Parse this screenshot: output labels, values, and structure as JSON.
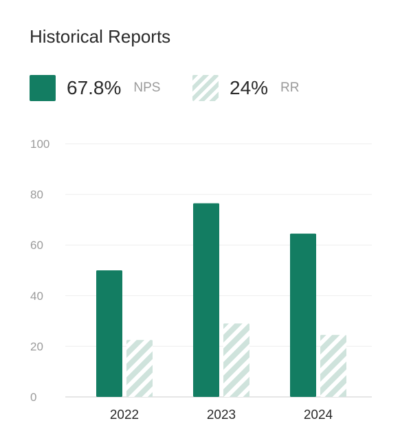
{
  "title": "Historical Reports",
  "legend": {
    "nps": {
      "value": "67.8%",
      "label": "NPS"
    },
    "rr": {
      "value": "24%",
      "label": "RR"
    }
  },
  "colors": {
    "nps": "#137d62",
    "rr_stripe": "#cfe3dc",
    "grid": "#eeeeee",
    "baseline": "#dddddd"
  },
  "chart_data": {
    "type": "bar",
    "categories": [
      "2022",
      "2023",
      "2024"
    ],
    "series": [
      {
        "name": "NPS",
        "values": [
          50,
          76.5,
          64.5
        ],
        "style": "solid"
      },
      {
        "name": "RR",
        "values": [
          22.5,
          29,
          24.5
        ],
        "style": "striped"
      }
    ],
    "ylim": [
      0,
      100
    ],
    "yticks": [
      0,
      20,
      40,
      60,
      80,
      100
    ],
    "grid": true,
    "legend_position": "top-left"
  }
}
